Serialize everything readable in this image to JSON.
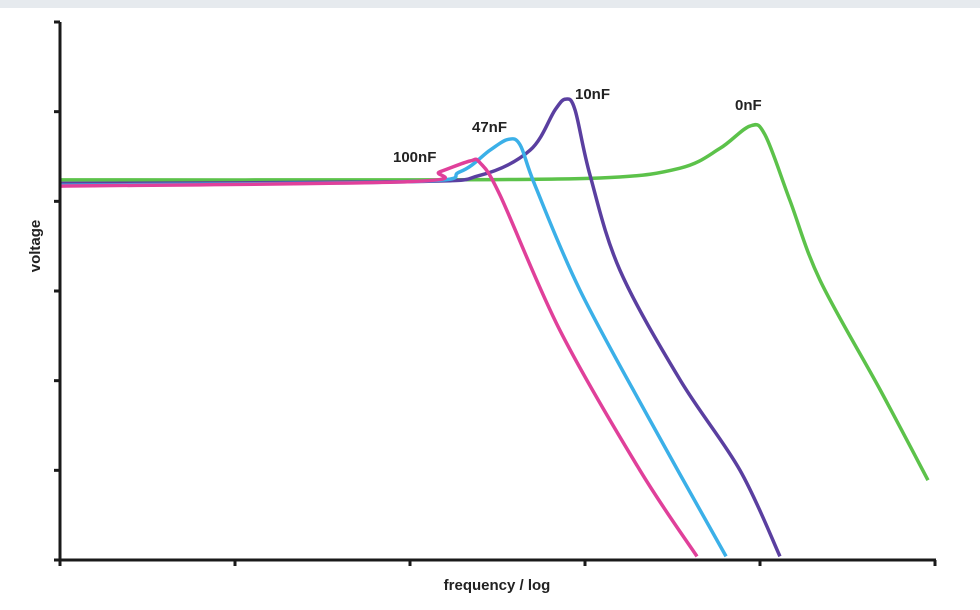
{
  "chart_data": {
    "type": "line",
    "title": "",
    "xlabel": "frequency / log",
    "ylabel": "voltage",
    "xlim": [
      0,
      5
    ],
    "ylim": [
      0,
      6
    ],
    "x_ticks": [
      0,
      1,
      2,
      3,
      4,
      5
    ],
    "y_ticks": [
      0,
      1,
      2,
      3,
      4,
      5,
      6
    ],
    "grid": false,
    "legend": "none (direct labels near peaks)",
    "series": [
      {
        "name": "0nF",
        "color": "#5cc24a",
        "x": [
          0,
          1.943,
          3.086,
          3.543,
          3.771,
          3.943,
          4.029,
          4.171,
          4.343,
          4.686,
          4.96
        ],
        "y": [
          4.24,
          4.24,
          4.26,
          4.37,
          4.59,
          4.84,
          4.74,
          4.01,
          3.12,
          1.9,
          0.89
        ]
      },
      {
        "name": "10nF",
        "color": "#5a3fa0",
        "x": [
          0,
          2.0,
          2.4,
          2.686,
          2.829,
          2.891,
          2.943,
          3.029,
          3.2,
          3.543,
          3.886,
          4.114
        ],
        "y": [
          4.2,
          4.22,
          4.29,
          4.57,
          5.02,
          5.14,
          5.02,
          4.29,
          3.23,
          2.01,
          1.0,
          0.04
        ]
      },
      {
        "name": "47nF",
        "color": "#3bb0e8",
        "x": [
          0,
          2.0,
          2.286,
          2.457,
          2.56,
          2.629,
          2.714,
          2.971,
          3.371,
          3.806
        ],
        "y": [
          4.18,
          4.22,
          4.33,
          4.57,
          4.69,
          4.63,
          4.18,
          3.01,
          1.56,
          0.04
        ]
      },
      {
        "name": "100nF",
        "color": "#e0409a",
        "x": [
          0,
          2.0,
          2.171,
          2.343,
          2.4,
          2.514,
          2.857,
          3.314,
          3.64
        ],
        "y": [
          4.17,
          4.22,
          4.33,
          4.45,
          4.43,
          4.07,
          2.56,
          1.0,
          0.04
        ]
      }
    ],
    "annotations": [
      "0nF",
      "10nF",
      "47nF",
      "100nF"
    ]
  }
}
